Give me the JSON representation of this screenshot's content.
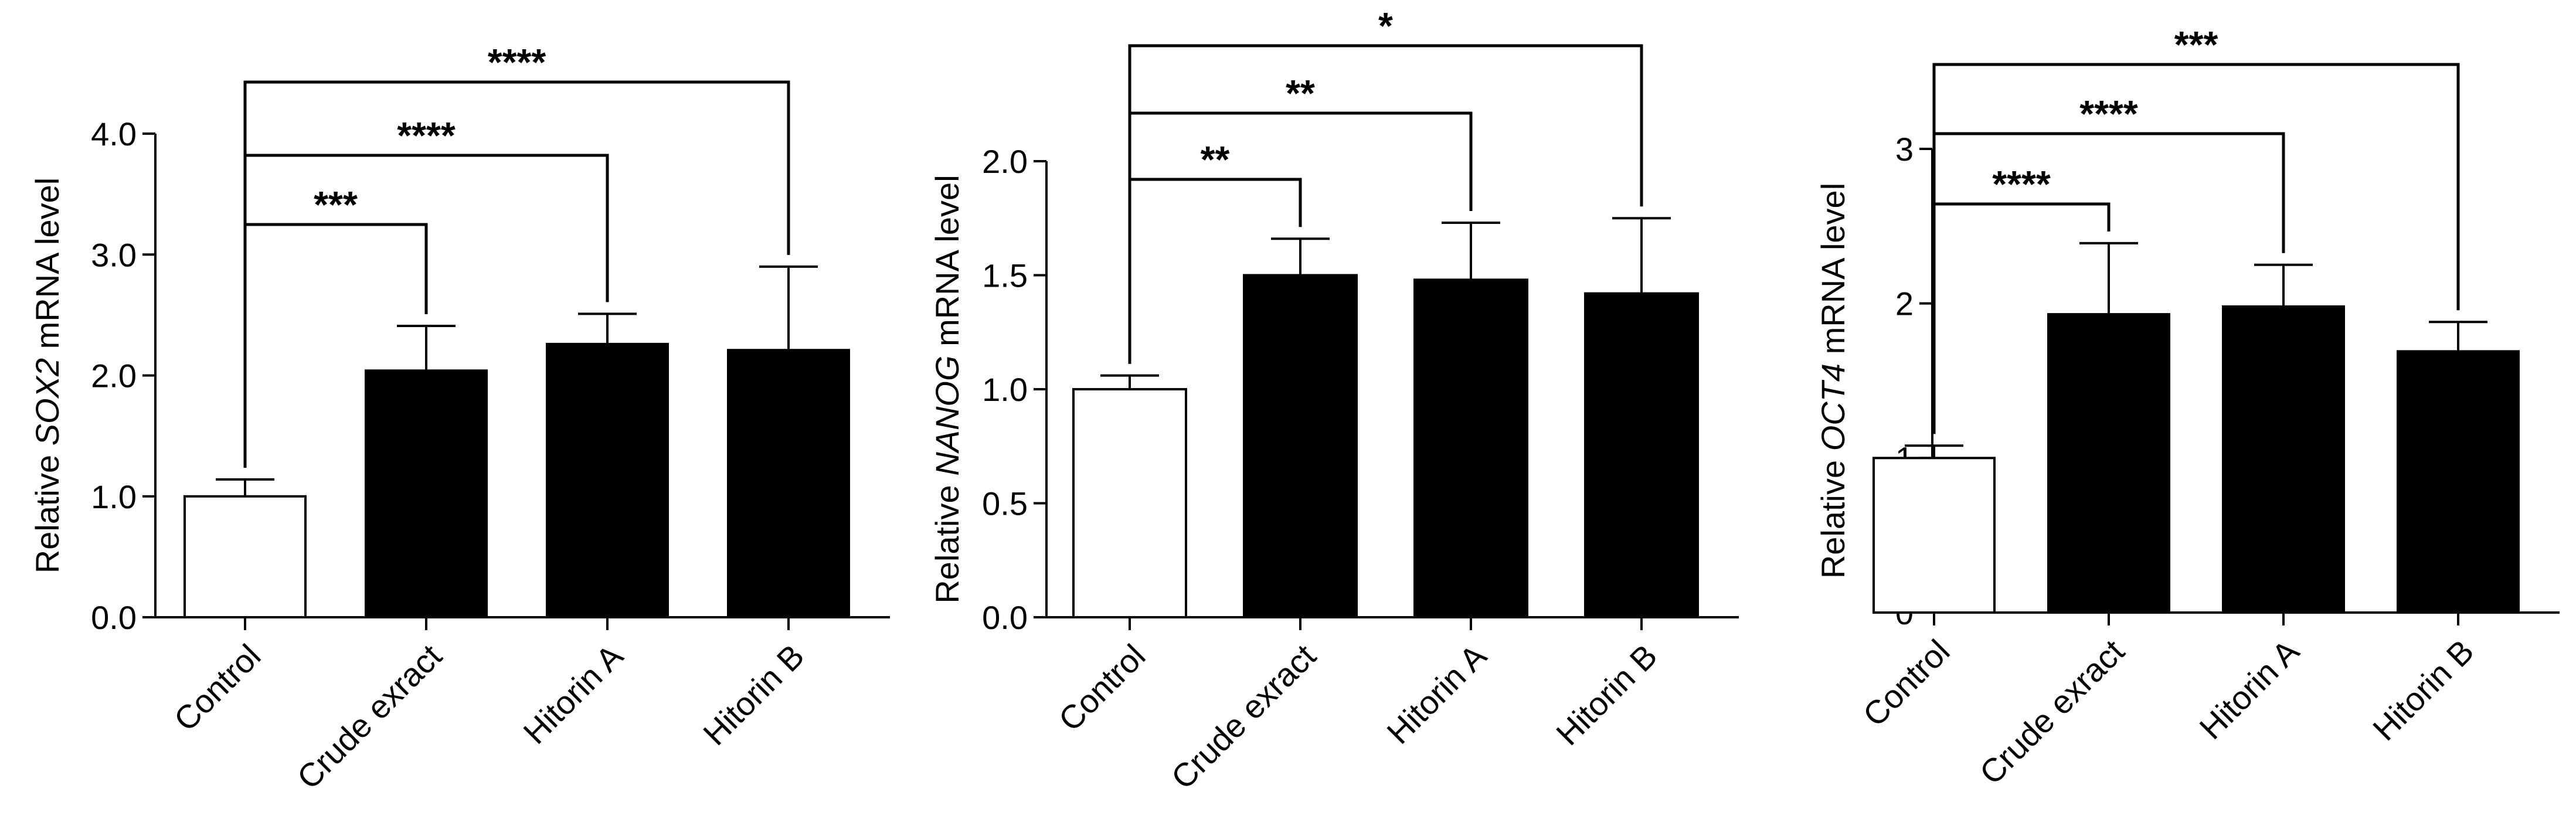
{
  "chart_data": [
    {
      "type": "bar",
      "ylabel": {
        "prefix": "Relative ",
        "gene": "SOX2",
        "suffix": " mRNA level"
      },
      "categories": [
        "Control",
        "Crude exract",
        "Hitorin A",
        "Hitorin B"
      ],
      "values": [
        1.0,
        2.04,
        2.26,
        2.21
      ],
      "errors": [
        0.14,
        0.37,
        0.25,
        0.69
      ],
      "bar_colors": [
        "#ffffff",
        "#000000",
        "#000000",
        "#000000"
      ],
      "ylim": [
        0,
        4.0
      ],
      "yticks": [
        0.0,
        1.0,
        2.0,
        3.0,
        4.0
      ],
      "ytick_labels": [
        "0.0",
        "1.0",
        "2.0",
        "3.0",
        "4.0"
      ],
      "comparisons": [
        {
          "from": 0,
          "to": 1,
          "label": "***"
        },
        {
          "from": 0,
          "to": 2,
          "label": "****"
        },
        {
          "from": 0,
          "to": 3,
          "label": "****"
        }
      ]
    },
    {
      "type": "bar",
      "ylabel": {
        "prefix": "Relative ",
        "gene": "NANOG",
        "suffix": " mRNA level"
      },
      "categories": [
        "Control",
        "Crude exract",
        "Hitorin A",
        "Hitorin B"
      ],
      "values": [
        1.0,
        1.5,
        1.48,
        1.42
      ],
      "errors": [
        0.06,
        0.16,
        0.25,
        0.33
      ],
      "bar_colors": [
        "#ffffff",
        "#000000",
        "#000000",
        "#000000"
      ],
      "ylim": [
        0,
        2.0
      ],
      "yticks": [
        0.0,
        0.5,
        1.0,
        1.5,
        2.0
      ],
      "ytick_labels": [
        "0.0",
        "0.5",
        "1.0",
        "1.5",
        "2.0"
      ],
      "comparisons": [
        {
          "from": 0,
          "to": 1,
          "label": "**"
        },
        {
          "from": 0,
          "to": 2,
          "label": "**"
        },
        {
          "from": 0,
          "to": 3,
          "label": "*"
        }
      ]
    },
    {
      "type": "bar",
      "ylabel": {
        "prefix": "Relative ",
        "gene": "OCT4",
        "suffix": " mRNA level"
      },
      "categories": [
        "Control",
        "Crude exract",
        "Hitorin A",
        "Hitorin B"
      ],
      "values": [
        1.0,
        1.93,
        1.98,
        1.69
      ],
      "errors": [
        0.08,
        0.46,
        0.27,
        0.19
      ],
      "bar_colors": [
        "#ffffff",
        "#000000",
        "#000000",
        "#000000"
      ],
      "ylim": [
        0,
        3
      ],
      "yticks": [
        0,
        1,
        2,
        3
      ],
      "ytick_labels": [
        "0",
        "1",
        "2",
        "3"
      ],
      "comparisons": [
        {
          "from": 0,
          "to": 1,
          "label": "****"
        },
        {
          "from": 0,
          "to": 2,
          "label": "****"
        },
        {
          "from": 0,
          "to": 3,
          "label": "***"
        }
      ]
    }
  ]
}
